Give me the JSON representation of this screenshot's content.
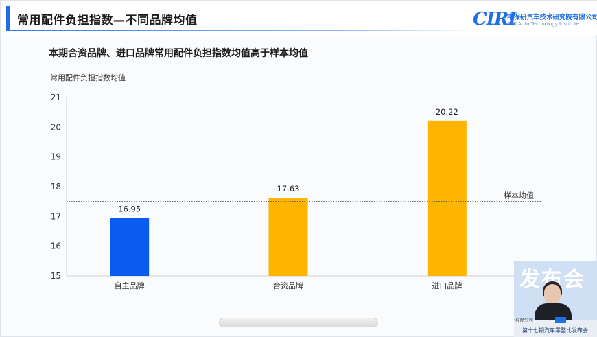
{
  "header": {
    "title": "常用配件负担指数—不同品牌均值",
    "logo_mark": "CIRI",
    "logo_cn": "中保研汽车技术研究院有限公司",
    "logo_en": "CIRI Auto Technology Institute"
  },
  "chart_data": {
    "type": "bar",
    "title": "本期合资品牌、进口品牌常用配件负担指数均值高于样本均值",
    "ylabel": "常用配件负担指数均值",
    "categories": [
      "自主品牌",
      "合资品牌",
      "进口品牌"
    ],
    "values": [
      16.95,
      17.63,
      20.22
    ],
    "value_labels": [
      "16.95",
      "17.63",
      "20.22"
    ],
    "colors": [
      "#0a5cf0",
      "#ffb400",
      "#ffb400"
    ],
    "ylim": [
      15,
      21
    ],
    "yticks": [
      15,
      16,
      17,
      18,
      19,
      20,
      21
    ],
    "reference_line": {
      "label": "样本均值",
      "value": 17.5,
      "style": "dotted"
    },
    "grid": false
  },
  "presenter": {
    "backdrop_text": "发布会",
    "caption": "第十七期汽车零整比发布会",
    "side_text": "有限公司"
  },
  "colors": {
    "accent": "#1f6fe5",
    "domestic_bar": "#0a5cf0",
    "other_bar": "#ffb400"
  }
}
